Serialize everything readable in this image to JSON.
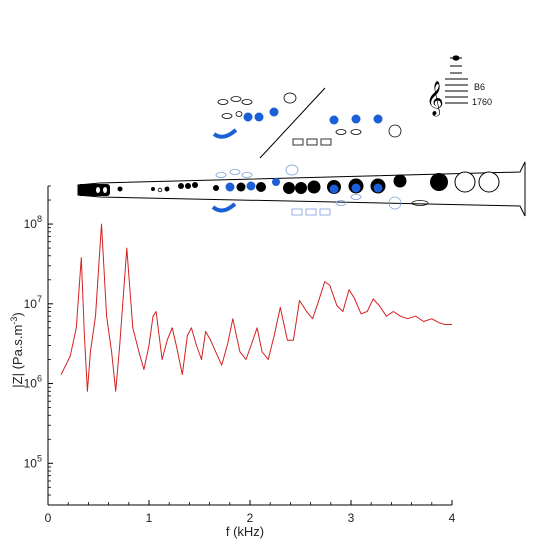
{
  "chart_data": {
    "type": "line",
    "xlabel": "f (kHz)",
    "ylabel_main": "|Z| (Pa.s.m",
    "ylabel_sup": "-3",
    "ylabel_tail": ")",
    "xlim": [
      0,
      4
    ],
    "ylim": [
      30000,
      300000000
    ],
    "yscale": "log",
    "x_ticks": [
      0,
      1,
      2,
      3,
      4
    ],
    "x_tick_labels": [
      "0",
      "1",
      "2",
      "3",
      "4"
    ],
    "y_ticks": [
      100000,
      1000000,
      10000000,
      100000000
    ],
    "y_tick_labels": [
      {
        "base": "10",
        "exp": "5"
      },
      {
        "base": "10",
        "exp": "6"
      },
      {
        "base": "10",
        "exp": "7"
      },
      {
        "base": "10",
        "exp": "8"
      }
    ],
    "series": [
      {
        "color": "#d42020",
        "points": [
          [
            0.13,
            1300000
          ],
          [
            0.22,
            2200000
          ],
          [
            0.28,
            5000000
          ],
          [
            0.33,
            38000000
          ],
          [
            0.36,
            4000000
          ],
          [
            0.39,
            800000
          ],
          [
            0.42,
            2500000
          ],
          [
            0.47,
            7000000
          ],
          [
            0.53,
            100000000
          ],
          [
            0.58,
            7000000
          ],
          [
            0.63,
            2500000
          ],
          [
            0.67,
            800000
          ],
          [
            0.71,
            3000000
          ],
          [
            0.78,
            50000000
          ],
          [
            0.84,
            5000000
          ],
          [
            0.9,
            2500000
          ],
          [
            0.95,
            1500000
          ],
          [
            1.0,
            3000000
          ],
          [
            1.04,
            7000000
          ],
          [
            1.07,
            8000000
          ],
          [
            1.13,
            2000000
          ],
          [
            1.18,
            3500000
          ],
          [
            1.23,
            5000000
          ],
          [
            1.27,
            3000000
          ],
          [
            1.33,
            1300000
          ],
          [
            1.38,
            4000000
          ],
          [
            1.42,
            5000000
          ],
          [
            1.47,
            3000000
          ],
          [
            1.52,
            2000000
          ],
          [
            1.56,
            4500000
          ],
          [
            1.61,
            3500000
          ],
          [
            1.66,
            2500000
          ],
          [
            1.72,
            1700000
          ],
          [
            1.78,
            3200000
          ],
          [
            1.83,
            6500000
          ],
          [
            1.9,
            2500000
          ],
          [
            1.96,
            2000000
          ],
          [
            2.01,
            3000000
          ],
          [
            2.07,
            5000000
          ],
          [
            2.12,
            2500000
          ],
          [
            2.18,
            2000000
          ],
          [
            2.24,
            4000000
          ],
          [
            2.3,
            9000000
          ],
          [
            2.37,
            3500000
          ],
          [
            2.43,
            3500000
          ],
          [
            2.49,
            11000000
          ],
          [
            2.56,
            8000000
          ],
          [
            2.62,
            6500000
          ],
          [
            2.67,
            10000000
          ],
          [
            2.74,
            19000000
          ],
          [
            2.79,
            17000000
          ],
          [
            2.86,
            9500000
          ],
          [
            2.92,
            8000000
          ],
          [
            2.98,
            15000000
          ],
          [
            3.03,
            12000000
          ],
          [
            3.1,
            7500000
          ],
          [
            3.16,
            8000000
          ],
          [
            3.22,
            11500000
          ],
          [
            3.28,
            9500000
          ],
          [
            3.35,
            7000000
          ],
          [
            3.42,
            8000000
          ],
          [
            3.49,
            7000000
          ],
          [
            3.56,
            6500000
          ],
          [
            3.64,
            7000000
          ],
          [
            3.72,
            6000000
          ],
          [
            3.8,
            6500000
          ],
          [
            3.87,
            5800000
          ],
          [
            3.93,
            5500000
          ],
          [
            4.0,
            5500000
          ]
        ]
      }
    ]
  },
  "inset": {
    "note_label": "B6",
    "frequency_label": "1760",
    "open_hole_color": "#1a5fd6",
    "outline_color": "#7aa0d8",
    "closed_hole_color": "#000000"
  }
}
